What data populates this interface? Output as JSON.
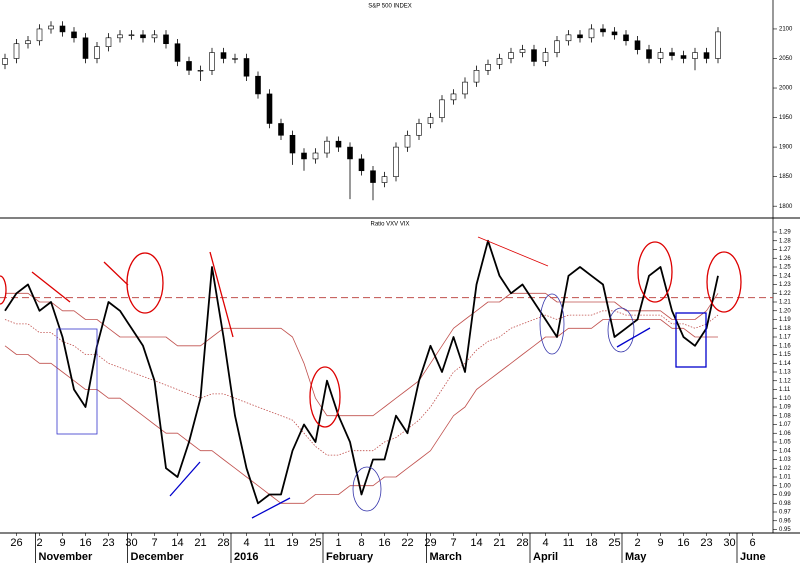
{
  "chart_data": [
    {
      "type": "candlestick",
      "title": "S&P 500 INDEX",
      "open": [
        2040,
        2050,
        2075,
        2080,
        2100,
        2105,
        2095,
        2085,
        2050,
        2070,
        2085,
        2090,
        2090,
        2085,
        2090,
        2075,
        2045,
        2030,
        2030,
        2060,
        2050,
        2050,
        2020,
        1990,
        1940,
        1920,
        1890,
        1880,
        1890,
        1910,
        1900,
        1880,
        1860,
        1840,
        1850,
        1900,
        1920,
        1940,
        1950,
        1980,
        1990,
        2010,
        2030,
        2040,
        2050,
        2060,
        2065,
        2045,
        2060,
        2080,
        2090,
        2085,
        2100,
        2095,
        2090,
        2080,
        2065,
        2050,
        2060,
        2055,
        2050,
        2060,
        2050,
        null,
        null,
        null
      ],
      "high": [
        2058,
        2083,
        2088,
        2108,
        2113,
        2113,
        2103,
        2093,
        2078,
        2093,
        2098,
        2098,
        2098,
        2098,
        2098,
        2083,
        2053,
        2038,
        2068,
        2068,
        2058,
        2058,
        2028,
        1998,
        1948,
        1928,
        1898,
        1898,
        1918,
        1918,
        1908,
        1888,
        1868,
        1858,
        1908,
        1928,
        1948,
        1958,
        1988,
        1998,
        2018,
        2038,
        2048,
        2058,
        2068,
        2073,
        2073,
        2068,
        2088,
        2098,
        2098,
        2108,
        2108,
        2103,
        2098,
        2088,
        2073,
        2068,
        2068,
        2063,
        2068,
        2068,
        2103,
        null,
        null,
        null
      ],
      "low": [
        2032,
        2042,
        2067,
        2072,
        2092,
        2087,
        2077,
        2042,
        2042,
        2062,
        2077,
        2082,
        2077,
        2077,
        2067,
        2037,
        2022,
        2012,
        2022,
        2042,
        2042,
        2012,
        1982,
        1932,
        1912,
        1870,
        1860,
        1872,
        1882,
        1892,
        1812,
        1852,
        1810,
        1832,
        1842,
        1892,
        1912,
        1932,
        1942,
        1972,
        1982,
        2002,
        2022,
        2032,
        2042,
        2052,
        2037,
        2037,
        2052,
        2072,
        2077,
        2077,
        2087,
        2082,
        2072,
        2057,
        2042,
        2042,
        2047,
        2042,
        2030,
        2042,
        2042,
        null,
        null,
        null
      ],
      "close": [
        2050,
        2075,
        2080,
        2100,
        2105,
        2095,
        2085,
        2050,
        2070,
        2085,
        2090,
        2090,
        2085,
        2090,
        2075,
        2045,
        2030,
        2030,
        2060,
        2050,
        2050,
        2020,
        1990,
        1940,
        1920,
        1890,
        1880,
        1890,
        1910,
        1900,
        1880,
        1860,
        1840,
        1850,
        1900,
        1920,
        1940,
        1950,
        1980,
        1990,
        2010,
        2030,
        2040,
        2050,
        2060,
        2065,
        2045,
        2060,
        2080,
        2090,
        2085,
        2100,
        2095,
        2090,
        2080,
        2065,
        2050,
        2060,
        2055,
        2050,
        2060,
        2050,
        2095,
        null,
        null,
        null
      ],
      "up_color": "#ffffff",
      "down_color": "#000000",
      "ylim": [
        1780,
        2149
      ],
      "yticks": [
        1800,
        1850,
        1900,
        1950,
        2000,
        2050,
        2100
      ]
    },
    {
      "type": "line",
      "title": "Ratio VXV VIX",
      "categories": [
        null,
        "26",
        null,
        "2",
        null,
        "9",
        null,
        "16",
        null,
        "23",
        null,
        "30",
        null,
        "7",
        null,
        "14",
        null,
        "21",
        null,
        "28",
        null,
        "4",
        null,
        "11",
        null,
        "19",
        null,
        "25",
        null,
        "1",
        null,
        "8",
        null,
        "16",
        null,
        "22",
        null,
        "29",
        null,
        "7",
        null,
        "14",
        null,
        "21",
        null,
        "28",
        null,
        "4",
        null,
        "11",
        null,
        "18",
        null,
        "25",
        null,
        "2",
        null,
        "9",
        null,
        "16",
        null,
        "23",
        null,
        "30",
        null,
        "6"
      ],
      "months": [
        null,
        null,
        null,
        "November",
        null,
        null,
        null,
        null,
        null,
        null,
        null,
        "December",
        null,
        null,
        null,
        null,
        null,
        null,
        null,
        null,
        "2016",
        null,
        null,
        null,
        null,
        null,
        null,
        null,
        "February",
        null,
        null,
        null,
        null,
        null,
        null,
        null,
        null,
        "March",
        null,
        null,
        null,
        null,
        null,
        null,
        null,
        null,
        "April",
        null,
        null,
        null,
        null,
        null,
        null,
        null,
        "May",
        null,
        null,
        null,
        null,
        null,
        null,
        null,
        null,
        null,
        "June",
        null
      ],
      "series": [
        {
          "color": "#c0504d",
          "style": "solid",
          "width": 0.8,
          "values": [
            1.22,
            1.22,
            1.22,
            1.21,
            1.21,
            1.2,
            1.2,
            1.19,
            1.19,
            1.18,
            1.17,
            1.17,
            1.17,
            1.17,
            1.17,
            1.16,
            1.16,
            1.16,
            1.17,
            1.18,
            1.18,
            1.18,
            1.18,
            1.18,
            1.18,
            1.17,
            1.14,
            1.1,
            1.08,
            1.08,
            1.08,
            1.08,
            1.08,
            1.09,
            1.1,
            1.11,
            1.12,
            1.14,
            1.16,
            1.18,
            1.19,
            1.2,
            1.21,
            1.21,
            1.22,
            1.22,
            1.22,
            1.22,
            1.21,
            1.21,
            1.21,
            1.21,
            1.21,
            1.21,
            1.2,
            1.2,
            1.2,
            1.2,
            1.19,
            1.19,
            1.19,
            1.2,
            1.22,
            null,
            null,
            null
          ]
        },
        {
          "color": "#c0504d",
          "style": "dotted",
          "width": 0.8,
          "values": [
            1.19,
            1.185,
            1.185,
            1.175,
            1.175,
            1.165,
            1.16,
            1.15,
            1.15,
            1.14,
            1.135,
            1.13,
            1.125,
            1.12,
            1.115,
            1.11,
            1.105,
            1.1,
            1.105,
            1.105,
            1.1,
            1.095,
            1.09,
            1.085,
            1.08,
            1.075,
            1.06,
            1.045,
            1.035,
            1.035,
            1.04,
            1.04,
            1.04,
            1.05,
            1.055,
            1.065,
            1.075,
            1.09,
            1.11,
            1.13,
            1.14,
            1.155,
            1.165,
            1.17,
            1.18,
            1.185,
            1.19,
            1.195,
            1.19,
            1.195,
            1.195,
            1.195,
            1.2,
            1.2,
            1.195,
            1.195,
            1.195,
            1.195,
            1.185,
            1.185,
            1.18,
            1.185,
            1.195,
            null,
            null,
            null
          ]
        },
        {
          "color": "#c0504d",
          "style": "solid",
          "width": 0.8,
          "values": [
            1.16,
            1.15,
            1.15,
            1.14,
            1.14,
            1.13,
            1.12,
            1.11,
            1.11,
            1.1,
            1.1,
            1.09,
            1.08,
            1.07,
            1.06,
            1.06,
            1.05,
            1.04,
            1.04,
            1.03,
            1.02,
            1.01,
            1.0,
            0.99,
            0.98,
            0.98,
            0.98,
            0.99,
            0.99,
            0.99,
            1.0,
            1.0,
            1.0,
            1.01,
            1.01,
            1.02,
            1.03,
            1.04,
            1.06,
            1.08,
            1.09,
            1.11,
            1.12,
            1.13,
            1.14,
            1.15,
            1.16,
            1.17,
            1.17,
            1.18,
            1.18,
            1.18,
            1.19,
            1.19,
            1.19,
            1.19,
            1.19,
            1.19,
            1.18,
            1.18,
            1.17,
            1.17,
            1.17,
            null,
            null,
            null
          ]
        },
        {
          "color": "#000000",
          "style": "solid",
          "width": 1.8,
          "values": [
            1.2,
            1.22,
            1.23,
            1.2,
            1.21,
            1.17,
            1.11,
            1.09,
            1.16,
            1.21,
            1.2,
            1.18,
            1.16,
            1.12,
            1.02,
            1.01,
            1.05,
            1.1,
            1.25,
            1.17,
            1.08,
            1.02,
            0.98,
            0.99,
            0.99,
            1.04,
            1.07,
            1.05,
            1.12,
            1.08,
            1.05,
            0.99,
            1.03,
            1.03,
            1.08,
            1.06,
            1.12,
            1.16,
            1.13,
            1.17,
            1.13,
            1.23,
            1.28,
            1.24,
            1.22,
            1.23,
            1.21,
            1.19,
            1.17,
            1.24,
            1.25,
            1.24,
            1.23,
            1.17,
            1.18,
            1.19,
            1.24,
            1.25,
            1.2,
            1.17,
            1.16,
            1.18,
            1.24,
            null,
            null,
            null
          ]
        }
      ],
      "reference_line": 1.215,
      "reference_color": "#c0504d",
      "ylim": [
        0.946,
        1.306
      ],
      "yticks": [
        0.95,
        0.96,
        0.97,
        0.98,
        0.99,
        {
          "value": 1,
          "label": "1.00"
        },
        1.01,
        1.02,
        1.03,
        1.04,
        1.05,
        1.06,
        1.07,
        1.08,
        1.09,
        {
          "value": 1.1,
          "label": "1.10"
        },
        1.11,
        1.12,
        1.13,
        1.14,
        1.15,
        1.16,
        1.17,
        1.18,
        1.19,
        {
          "value": 1.2,
          "label": "1.20"
        },
        1.21,
        1.22,
        1.23,
        1.24,
        1.25,
        1.26,
        1.27,
        1.28,
        1.29
      ]
    }
  ]
}
